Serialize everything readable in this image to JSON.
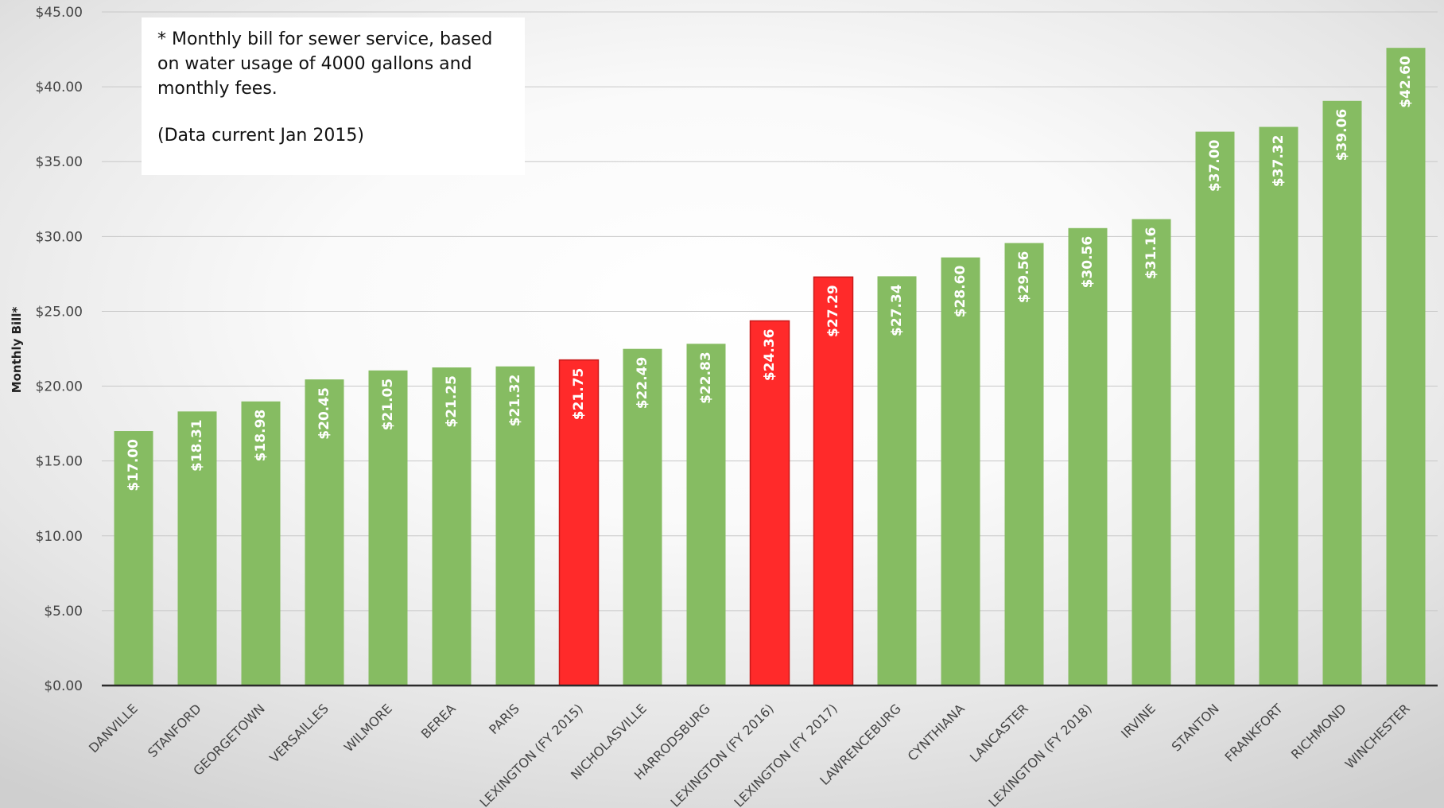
{
  "note": {
    "definition": "* Monthly bill for sewer service, based on water usage of 4000 gallons and monthly fees.",
    "data_date": "(Data current Jan 2015)"
  },
  "chart_data": {
    "type": "bar",
    "title": "",
    "xlabel": "",
    "ylabel": "Monthly Bill*",
    "ylim": [
      0,
      45
    ],
    "yticks": [
      "$0.00",
      "$5.00",
      "$10.00",
      "$15.00",
      "$20.00",
      "$25.00",
      "$30.00",
      "$35.00",
      "$40.00",
      "$45.00"
    ],
    "ytick_values": [
      0,
      5,
      10,
      15,
      20,
      25,
      30,
      35,
      40,
      45
    ],
    "grid": true,
    "legend": "none",
    "colors": {
      "default": "#86bc62",
      "highlight": "#ff2a2a"
    },
    "categories": [
      "DANVILLE",
      "STANFORD",
      "GEORGETOWN",
      "VERSAILLES",
      "WILMORE",
      "BEREA",
      "PARIS",
      "LEXINGTON (FY 2015)",
      "NICHOLASVILLE",
      "HARRODSBURG",
      "LEXINGTON (FY 2016)",
      "LEXINGTON (FY 2017)",
      "LAWRENCEBURG",
      "CYNTHIANA",
      "LANCASTER",
      "LEXINGTON (FY 2018)",
      "IRVINE",
      "STANTON",
      "FRANKFORT",
      "RICHMOND",
      "WINCHESTER"
    ],
    "values": [
      17.0,
      18.31,
      18.98,
      20.45,
      21.05,
      21.25,
      21.32,
      21.75,
      22.49,
      22.83,
      24.36,
      27.29,
      27.34,
      28.6,
      29.56,
      30.56,
      31.16,
      37.0,
      37.32,
      39.06,
      42.6
    ],
    "value_labels": [
      "$17.00",
      "$18.31",
      "$18.98",
      "$20.45",
      "$21.05",
      "$21.25",
      "$21.32",
      "$21.75",
      "$22.49",
      "$22.83",
      "$24.36",
      "$27.29",
      "$27.34",
      "$28.60",
      "$29.56",
      "$30.56",
      "$31.16",
      "$37.00",
      "$37.32",
      "$39.06",
      "$42.60"
    ],
    "highlighted": [
      false,
      false,
      false,
      false,
      false,
      false,
      false,
      true,
      false,
      false,
      true,
      true,
      false,
      false,
      false,
      false,
      false,
      false,
      false,
      false,
      false
    ]
  }
}
